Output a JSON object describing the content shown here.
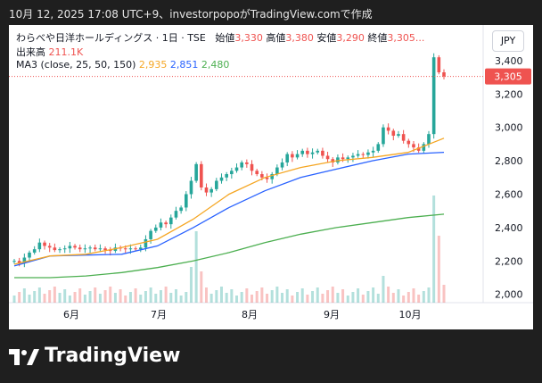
{
  "topbar": {
    "caption": "10月 12, 2025 17:08 UTC+9、investorpopoがTradingView.comで作成"
  },
  "legend": {
    "title": "わらべや日洋ホールディングス · 1日 · TSE",
    "open_label": "始値",
    "open": "3,330",
    "high_label": "高値",
    "high": "3,380",
    "low_label": "安値",
    "low": "3,290",
    "close_label": "終値",
    "close": "3,305...",
    "volume_label": "出来高",
    "volume": "211.1K",
    "ma_label": "MA3 (close, 25, 50, 150)",
    "ma25": "2,935",
    "ma50": "2,851",
    "ma150": "2,480"
  },
  "currency": "JPY",
  "last_price_tag": "3,305",
  "footer": {
    "brand": "TradingView"
  },
  "colors": {
    "up": "#26a69a",
    "down": "#ef5350",
    "ma25": "#f5a623",
    "ma50": "#2962ff",
    "ma150": "#4caf50"
  },
  "chart_data": {
    "type": "candlestick",
    "x_ticks": [
      "6月",
      "7月",
      "8月",
      "9月",
      "10月"
    ],
    "y_ticks": [
      "3,400",
      "3,200",
      "3,000",
      "2,800",
      "2,600",
      "2,400",
      "2,200",
      "2,000"
    ],
    "ylim": [
      1950,
      3560
    ],
    "approx_close_series": [
      2200,
      2185,
      2220,
      2250,
      2270,
      2310,
      2290,
      2280,
      2265,
      2270,
      2275,
      2290,
      2280,
      2270,
      2275,
      2280,
      2270,
      2275,
      2265,
      2260,
      2280,
      2275,
      2270,
      2275,
      2270,
      2280,
      2330,
      2380,
      2400,
      2430,
      2420,
      2460,
      2500,
      2520,
      2600,
      2680,
      2780,
      2640,
      2610,
      2630,
      2680,
      2700,
      2720,
      2740,
      2760,
      2790,
      2780,
      2740,
      2720,
      2700,
      2690,
      2720,
      2760,
      2790,
      2840,
      2820,
      2840,
      2860,
      2840,
      2850,
      2860,
      2830,
      2810,
      2790,
      2820,
      2810,
      2820,
      2830,
      2840,
      2835,
      2850,
      2860,
      2900,
      3000,
      2980,
      2950,
      2960,
      2920,
      2900,
      2880,
      2860,
      2900,
      2960,
      3420,
      3330,
      3305
    ],
    "ma25": [
      2180,
      2230,
      2240,
      2280,
      2330,
      2450,
      2600,
      2700,
      2760,
      2800,
      2820,
      2850,
      2935
    ],
    "ma50": [
      2170,
      2230,
      2235,
      2240,
      2290,
      2400,
      2520,
      2620,
      2700,
      2750,
      2800,
      2840,
      2851
    ],
    "ma150": [
      2100,
      2100,
      2110,
      2130,
      2160,
      2200,
      2250,
      2310,
      2360,
      2400,
      2430,
      2460,
      2480
    ],
    "volume_spikes_note": ""
  }
}
